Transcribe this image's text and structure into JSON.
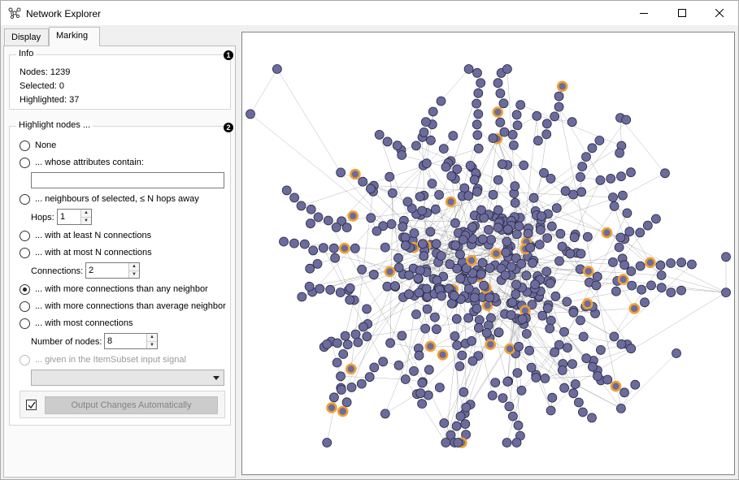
{
  "window": {
    "title": "Network Explorer",
    "accent": "#6b6b9e"
  },
  "tabs": [
    {
      "label": "Display",
      "active": false
    },
    {
      "label": "Marking",
      "active": true
    }
  ],
  "info": {
    "title": "Info",
    "badge": "1",
    "nodes": "Nodes: 1239",
    "selected": "Selected: 0",
    "highlighted": "Highlighted: 37"
  },
  "highlight": {
    "title": "Highlight nodes ...",
    "badge": "2",
    "options": {
      "none": "None",
      "attributes": "... whose attributes contain:",
      "neighbours": "... neighbours of selected, ≤ N hops away",
      "at_least": "... with at least N connections",
      "at_most": "... with at most N connections",
      "more_than_any": "... with more connections than any neighbor",
      "more_than_avg": "... with more connections than average neighbor",
      "most": "... with most connections",
      "item_subset": "... given in the ItemSubset input signal"
    },
    "selected_option": "more_than_any",
    "attributes_value": "",
    "hops_label": "Hops:",
    "hops_value": "1",
    "connections_label": "Connections:",
    "connections_value": "2",
    "number_label": "Number of nodes:",
    "number_value": "8",
    "item_subset_value": ""
  },
  "output": {
    "checkbox_checked": true,
    "button_label": "Output Changes Automatically"
  },
  "graph": {
    "node_color": "#6b6b9e",
    "node_stroke": "#2a2a40",
    "highlight_color": "#f0a030",
    "edge_color": "#555555"
  }
}
